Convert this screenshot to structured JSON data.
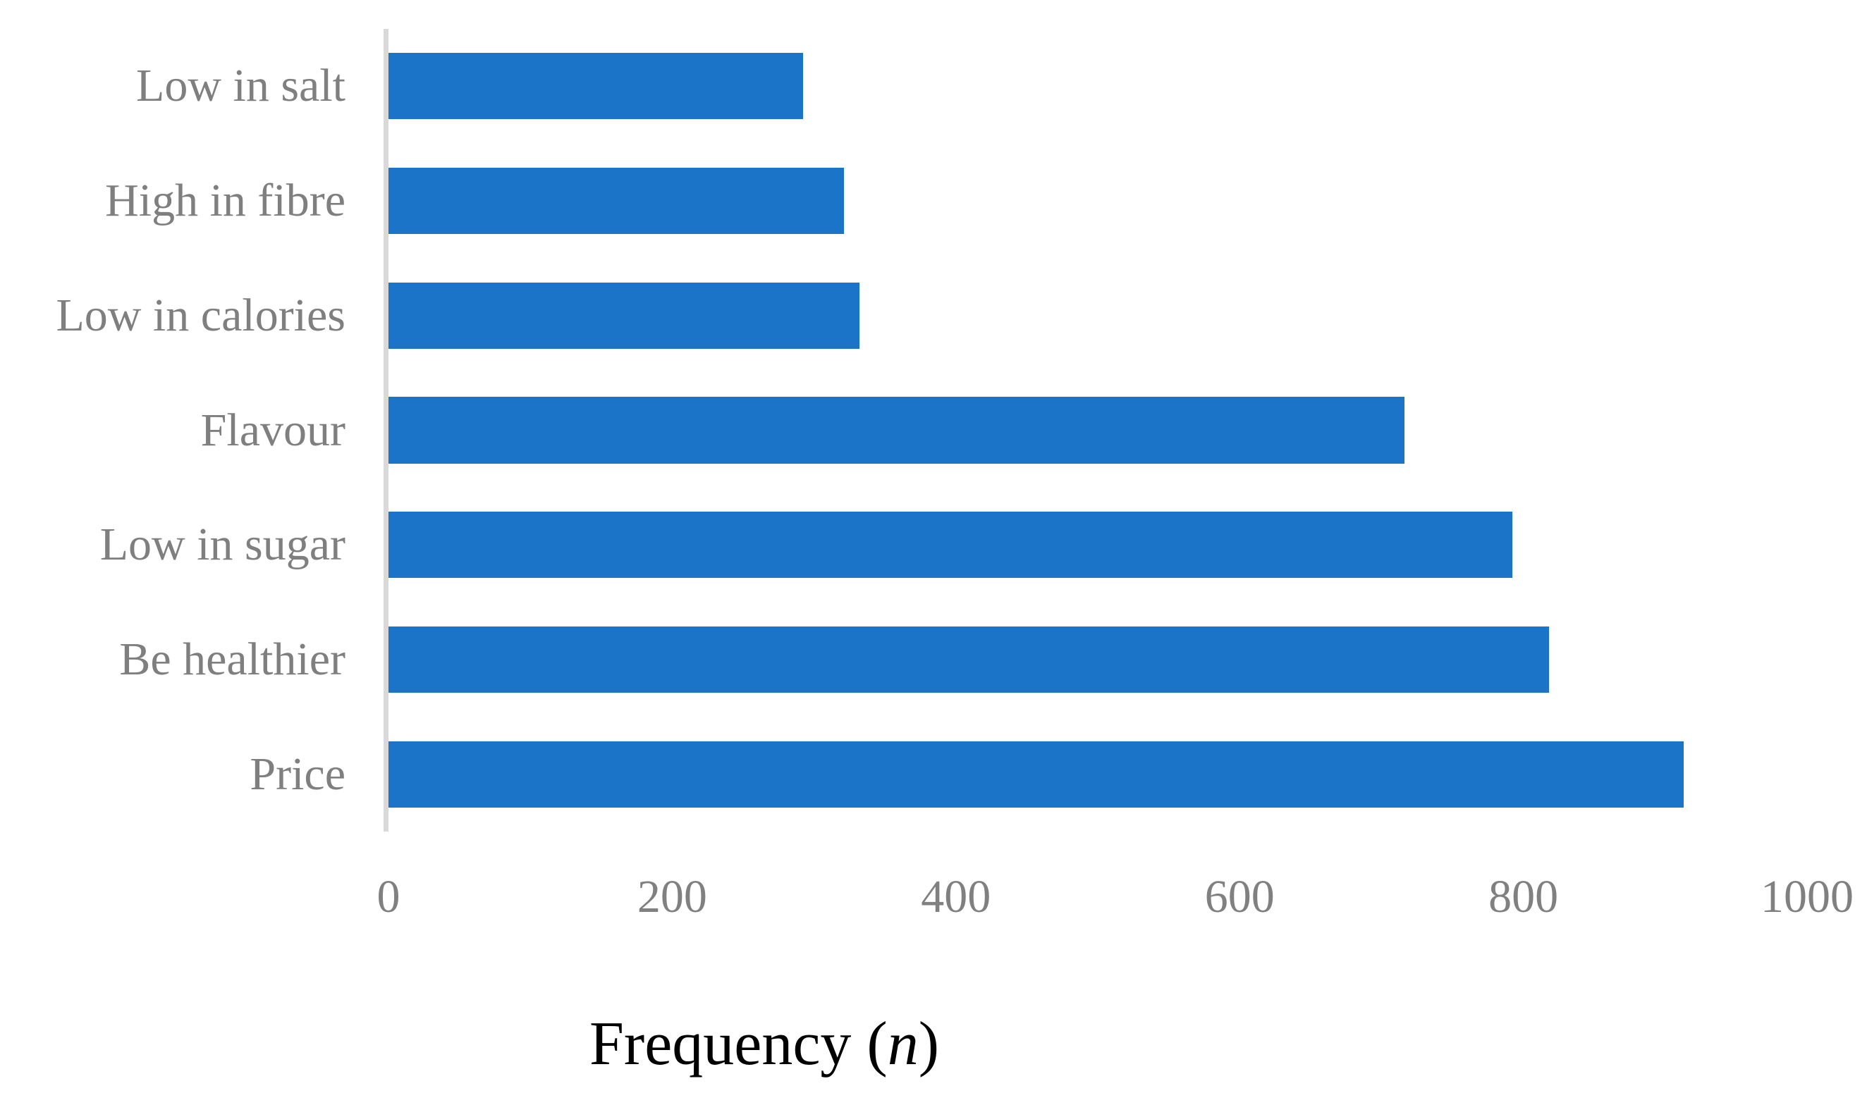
{
  "chart_data": {
    "type": "bar",
    "orientation": "horizontal",
    "title": "",
    "xlabel": "Frequency (n)",
    "xlabel_prefix": "Frequency (",
    "xlabel_variable": "n",
    "xlabel_suffix": ")",
    "ylabel": "",
    "categories": [
      "Low in salt",
      "High in fibre",
      "Low in calories",
      "Flavour",
      "Low in sugar",
      "Be healthier",
      "Price"
    ],
    "values": [
      292,
      321,
      332,
      716,
      792,
      818,
      913
    ],
    "xlim": [
      0,
      1000
    ],
    "xticks": [
      0,
      200,
      400,
      600,
      800,
      1000
    ],
    "xtick_labels": [
      "0",
      "200",
      "400",
      "600",
      "800",
      "1000"
    ],
    "grid": false,
    "legend": "none",
    "colors": {
      "bar": "#1b74c7",
      "axis_line": "#d9d9d9",
      "category_label": "#7f7f7f",
      "tick_label": "#808080",
      "axis_title": "#000000",
      "background": "#ffffff"
    }
  }
}
